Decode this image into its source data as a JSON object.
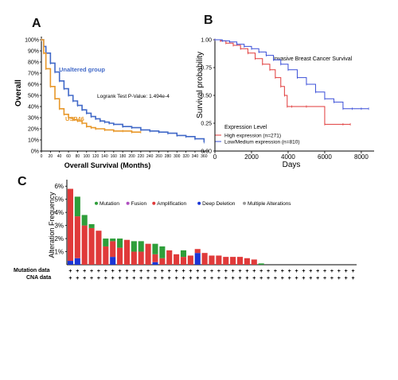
{
  "chart_data": [
    {
      "panel": "A",
      "type": "line",
      "xlabel": "Overall Survival (Months)",
      "ylabel": "Overall",
      "xticks": [
        0,
        20,
        40,
        60,
        80,
        100,
        120,
        140,
        160,
        180,
        200,
        220,
        240,
        260,
        280,
        300,
        320,
        340,
        360
      ],
      "yticks": [
        "0%",
        "10%",
        "20%",
        "30%",
        "40%",
        "50%",
        "60%",
        "70%",
        "80%",
        "90%",
        "100%"
      ],
      "xlim": [
        0,
        370
      ],
      "ylim": [
        0,
        100
      ],
      "annotation": "Logrank Test P-Value: 1.494e-4",
      "series": [
        {
          "name": "Unaltered group",
          "color": "#4169c8",
          "x": [
            0,
            5,
            10,
            20,
            30,
            40,
            50,
            60,
            70,
            80,
            90,
            100,
            110,
            120,
            130,
            140,
            150,
            160,
            180,
            200,
            220,
            240,
            260,
            280,
            300,
            320,
            340,
            360
          ],
          "y": [
            100,
            94,
            88,
            79,
            71,
            63,
            56,
            50,
            45,
            41,
            37,
            34,
            31,
            29,
            27,
            26,
            25,
            24,
            22,
            21,
            19,
            18,
            17,
            16,
            14,
            13,
            11,
            8
          ]
        },
        {
          "name": "USP46",
          "color": "#e8982a",
          "x": [
            0,
            5,
            10,
            20,
            30,
            40,
            50,
            60,
            70,
            80,
            90,
            100,
            110,
            120,
            140,
            160,
            180,
            200,
            220
          ],
          "y": [
            100,
            88,
            74,
            58,
            47,
            38,
            33,
            30,
            28,
            27,
            25,
            22,
            21,
            20,
            19,
            18,
            18,
            17,
            17
          ]
        }
      ]
    },
    {
      "panel": "B",
      "type": "line",
      "title": "Invasive Breast Cancer Survival",
      "xlabel": "Days",
      "ylabel": "Survival probability",
      "xticks": [
        "0",
        "2000",
        "4000",
        "6000",
        "8000"
      ],
      "yticks": [
        "0.00",
        "0.25",
        "0.50",
        "0.75",
        "1.00"
      ],
      "xlim": [
        0,
        8700
      ],
      "ylim": [
        0,
        1
      ],
      "legend_title": "Expression Level",
      "series": [
        {
          "name": "High expression (n=271)",
          "color": "#e03a3a",
          "x": [
            0,
            300,
            600,
            1000,
            1400,
            1800,
            2200,
            2600,
            3000,
            3300,
            3600,
            3800,
            3950,
            4200,
            5000,
            6000,
            7000,
            7400
          ],
          "y": [
            1.0,
            0.99,
            0.97,
            0.95,
            0.92,
            0.88,
            0.83,
            0.78,
            0.73,
            0.66,
            0.58,
            0.5,
            0.4,
            0.4,
            0.4,
            0.24,
            0.24,
            0.24
          ]
        },
        {
          "name": "Low/Medium expression (n=810)",
          "color": "#3a4fd8",
          "x": [
            0,
            400,
            800,
            1200,
            1600,
            2000,
            2400,
            2800,
            3200,
            3600,
            4000,
            4500,
            5000,
            5500,
            6000,
            6500,
            7000,
            7500,
            8000,
            8400
          ],
          "y": [
            1.0,
            0.99,
            0.98,
            0.96,
            0.94,
            0.92,
            0.89,
            0.86,
            0.82,
            0.78,
            0.73,
            0.66,
            0.6,
            0.53,
            0.47,
            0.44,
            0.38,
            0.38,
            0.38,
            0.38
          ]
        }
      ]
    },
    {
      "panel": "C",
      "type": "bar",
      "ylabel": "Alteration Frequency",
      "yticks": [
        "1%",
        "2%",
        "3%",
        "4%",
        "5%",
        "6%"
      ],
      "ylim": [
        0,
        6.5
      ],
      "legend": [
        {
          "name": "Mutation",
          "color": "#2e9e3a"
        },
        {
          "name": "Fusion",
          "color": "#b04fc0"
        },
        {
          "name": "Amplification",
          "color": "#e03a3a"
        },
        {
          "name": "Deep Deletion",
          "color": "#1a35d6"
        },
        {
          "name": "Multiple Alterations",
          "color": "#9a9a9a"
        }
      ],
      "row_labels": [
        "Mutation data",
        "CNA data"
      ],
      "stacks": [
        [
          0,
          0,
          0,
          0,
          0,
          0,
          0,
          0,
          0,
          0,
          0,
          0,
          0,
          0,
          0,
          0,
          0,
          0,
          0,
          0,
          0,
          0,
          0,
          0,
          0,
          0,
          0,
          0,
          0,
          0,
          0,
          0,
          0,
          0,
          0,
          0,
          0,
          0,
          0,
          0,
          0
        ],
        [
          0.3,
          0.5,
          0.0,
          0.0,
          0.0,
          0.0,
          0.6,
          0.0,
          0.0,
          0.0,
          0.0,
          0.0,
          0.2,
          0.0,
          0.0,
          0.0,
          0.0,
          0.0,
          0.9,
          0.0,
          0.0,
          0.0,
          0.0,
          0.0,
          0.0,
          0.0,
          0.0,
          0.0,
          0.0,
          0.0,
          0.0,
          0.0,
          0.0,
          0.0,
          0.0,
          0.0,
          0.0,
          0.0,
          0.0,
          0.0,
          0.0
        ],
        [
          5.5,
          3.2,
          3.0,
          2.8,
          2.6,
          1.4,
          1.2,
          1.3,
          1.9,
          1.0,
          1.0,
          1.6,
          0.6,
          0.5,
          1.1,
          0.8,
          0.6,
          0.7,
          0.3,
          0.9,
          0.7,
          0.7,
          0.6,
          0.6,
          0.6,
          0.5,
          0.4,
          0.0,
          0.0,
          0.0,
          0.0,
          0.0,
          0.0,
          0.0,
          0.0,
          0.0,
          0.0,
          0.0,
          0.0,
          0.0,
          0.0
        ],
        [
          0.0,
          1.5,
          0.8,
          0.3,
          0.0,
          0.6,
          0.2,
          0.7,
          0.0,
          0.8,
          0.8,
          0.0,
          0.8,
          0.9,
          0.0,
          0.0,
          0.5,
          0.0,
          0.0,
          0.0,
          0.0,
          0.0,
          0.0,
          0.0,
          0.0,
          0.0,
          0.0,
          0.1,
          0.0,
          0.0,
          0.0,
          0.0,
          0.0,
          0.0,
          0.0,
          0.0,
          0.0,
          0.0,
          0.0,
          0.0,
          0.0
        ]
      ],
      "stack_colors": [
        "#9a9a9a",
        "#1a35d6",
        "#e03a3a",
        "#2e9e3a"
      ]
    }
  ],
  "panels": {
    "a": "A",
    "b": "B",
    "c": "C"
  }
}
